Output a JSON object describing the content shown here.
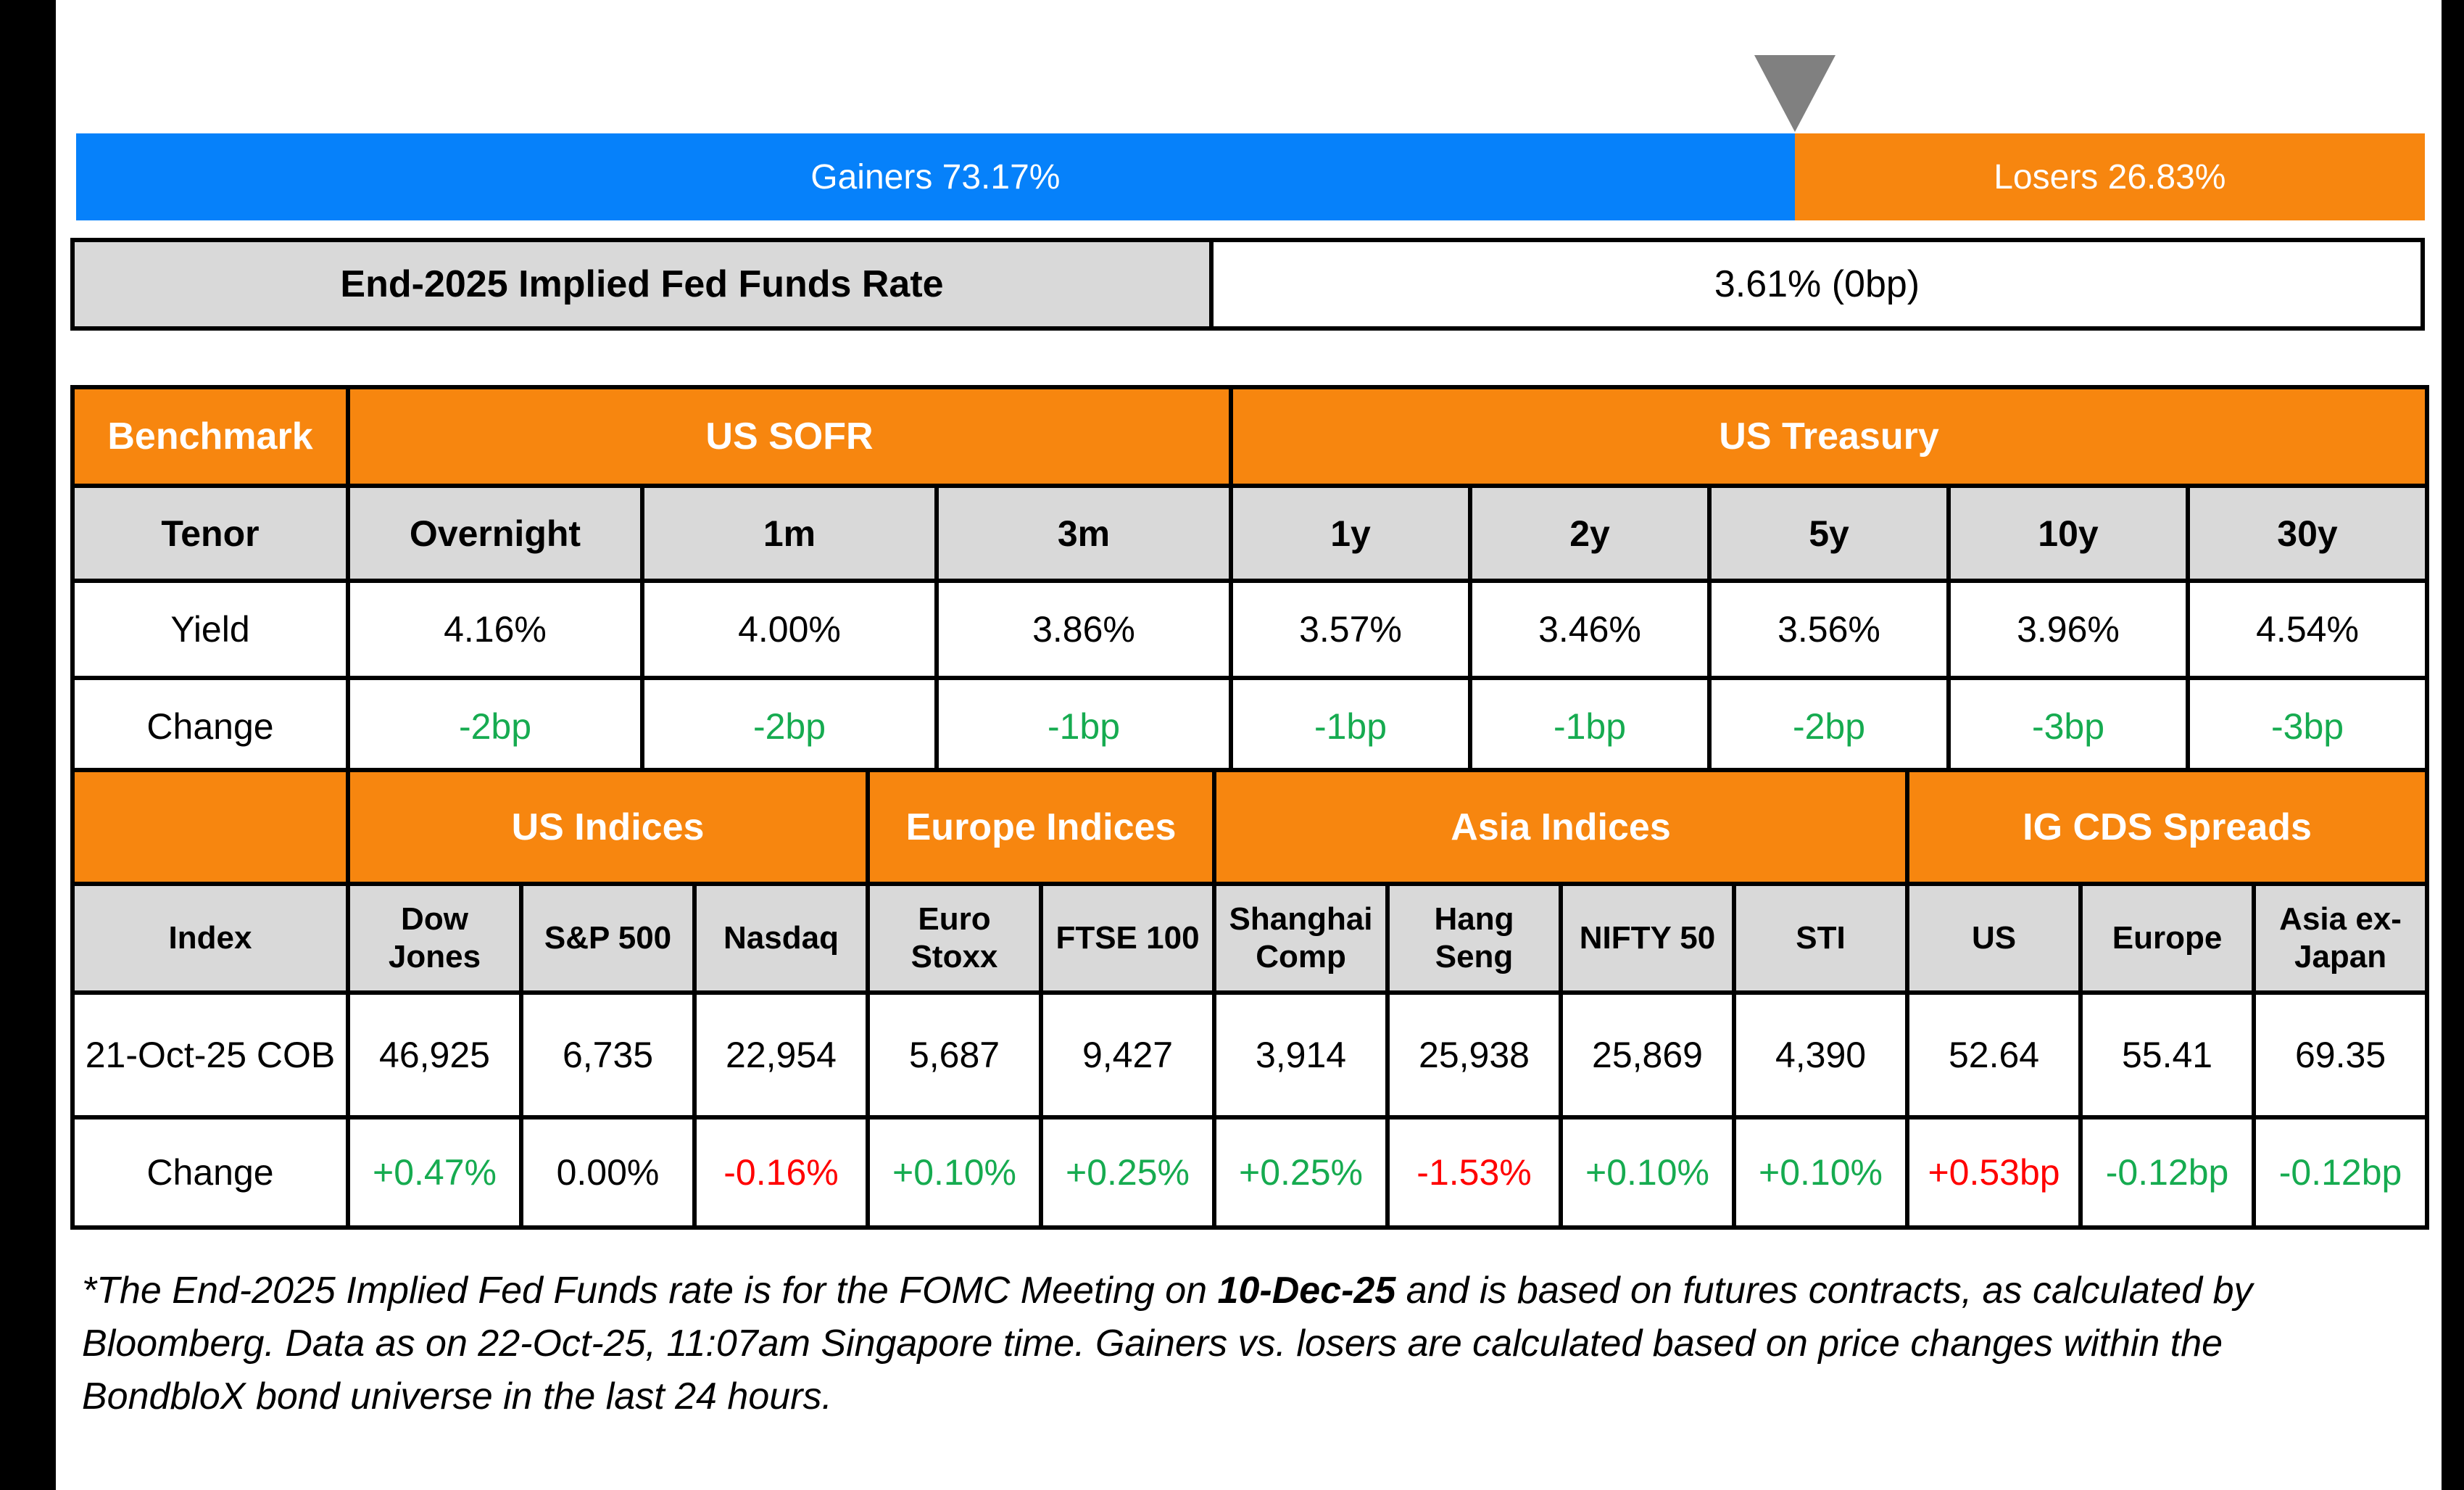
{
  "palette": {
    "blue": "#0681fa",
    "orange": "#f7860f",
    "gray_cell": "#d9d9d9",
    "green": "#16ab50",
    "red": "#ff0000",
    "marker_gray": "#808080"
  },
  "chart_data": [
    {
      "type": "bar",
      "name": "gainers-losers-bar",
      "orientation": "horizontal-stacked",
      "unit": "%",
      "segments": [
        {
          "label": "Gainers 73.17%",
          "value": 73.17,
          "color_key": "blue"
        },
        {
          "label": "Losers 26.83%",
          "value": 26.83,
          "color_key": "orange"
        }
      ]
    },
    {
      "type": "table",
      "name": "benchmark-table",
      "corner_label": "Benchmark",
      "groups": [
        {
          "label": "US SOFR",
          "span": 3
        },
        {
          "label": "US Treasury",
          "span": 5
        }
      ],
      "row_labels": [
        "Tenor",
        "Yield",
        "Change"
      ],
      "tenors": [
        "Overnight",
        "1m",
        "3m",
        "1y",
        "2y",
        "5y",
        "10y",
        "30y"
      ],
      "yields": [
        "4.16%",
        "4.00%",
        "3.86%",
        "3.57%",
        "3.46%",
        "3.56%",
        "3.96%",
        "4.54%"
      ],
      "changes": [
        {
          "v": "-2bp",
          "s": "pos"
        },
        {
          "v": "-2bp",
          "s": "pos"
        },
        {
          "v": "-1bp",
          "s": "pos"
        },
        {
          "v": "-1bp",
          "s": "pos"
        },
        {
          "v": "-1bp",
          "s": "pos"
        },
        {
          "v": "-2bp",
          "s": "pos"
        },
        {
          "v": "-3bp",
          "s": "pos"
        },
        {
          "v": "-3bp",
          "s": "pos"
        }
      ]
    },
    {
      "type": "table",
      "name": "indices-table",
      "corner_label": "",
      "groups": [
        {
          "label": "US Indices",
          "span": 3
        },
        {
          "label": "Europe Indices",
          "span": 2
        },
        {
          "label": "Asia Indices",
          "span": 4
        },
        {
          "label": "IG CDS Spreads",
          "span": 3
        }
      ],
      "row_labels": [
        "Index",
        "21-Oct-25 COB",
        "Change"
      ],
      "columns": [
        "Dow Jones",
        "S&P 500",
        "Nasdaq",
        "Euro Stoxx",
        "FTSE 100",
        "Shanghai Comp",
        "Hang Seng",
        "NIFTY 50",
        "STI",
        "US",
        "Europe",
        "Asia ex-Japan"
      ],
      "values": [
        "46,925",
        "6,735",
        "22,954",
        "5,687",
        "9,427",
        "3,914",
        "25,938",
        "25,869",
        "4,390",
        "52.64",
        "55.41",
        "69.35"
      ],
      "changes": [
        {
          "v": "+0.47%",
          "s": "pos"
        },
        {
          "v": "0.00%",
          "s": "flat"
        },
        {
          "v": "-0.16%",
          "s": "neg"
        },
        {
          "v": "+0.10%",
          "s": "pos"
        },
        {
          "v": "+0.25%",
          "s": "pos"
        },
        {
          "v": "+0.25%",
          "s": "pos"
        },
        {
          "v": "-1.53%",
          "s": "neg"
        },
        {
          "v": "+0.10%",
          "s": "pos"
        },
        {
          "v": "+0.10%",
          "s": "pos"
        },
        {
          "v": "+0.53bp",
          "s": "neg"
        },
        {
          "v": "-0.12bp",
          "s": "pos"
        },
        {
          "v": "-0.12bp",
          "s": "pos"
        }
      ]
    }
  ],
  "fed_funds": {
    "label": "End-2025 Implied Fed Funds Rate",
    "value": "3.61% (0bp)"
  },
  "footnote": {
    "line1_pre": "*The End-2025 Implied Fed Funds rate is for the FOMC Meeting on ",
    "line1_bold": "10-Dec-25",
    "line1_post": " and is based on futures contracts, as calculated by",
    "line2": "Bloomberg. Data as on 22-Oct-25, 11:07am Singapore time. Gainers vs. losers are calculated based on price changes within the",
    "line3": "BondbloX bond universe in the last 24 hours."
  }
}
